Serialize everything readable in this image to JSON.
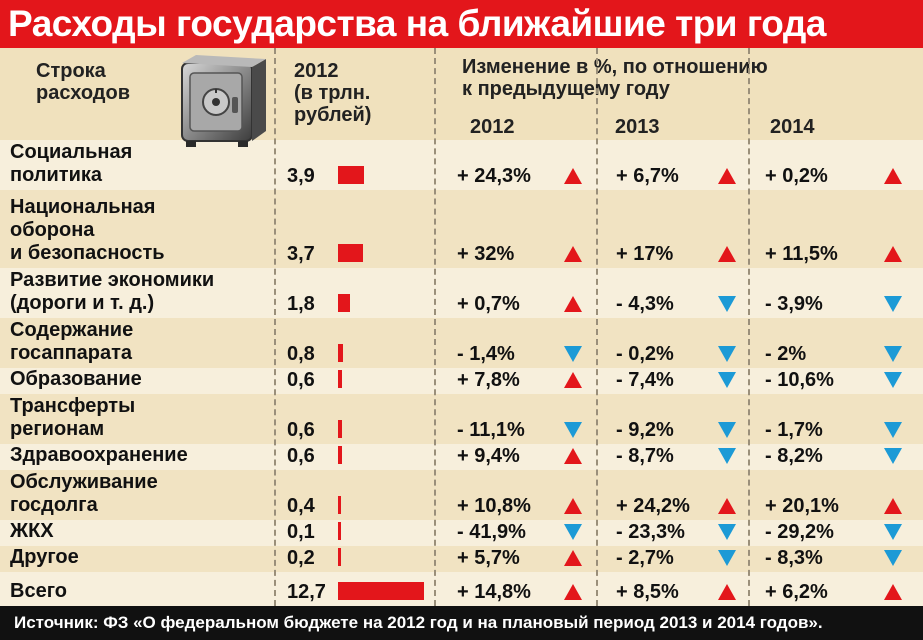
{
  "header": {
    "title": "Расходы государства на ближайшие три года",
    "col_item": "Строка\nрасходов",
    "col_value": "2012\n(в трлн.\nрублей)",
    "col_change": "Изменение в %, по отношению\nк предыдущему году",
    "years": [
      "2012",
      "2013",
      "2014"
    ]
  },
  "source": "Источник: ФЗ «О федеральном бюджете на 2012 год и на плановый период 2013 и 2014 годов».",
  "colors": {
    "accent": "#e3161b",
    "increase": "#e3161b",
    "decrease": "#1c9ad6",
    "title_bg": "#e3161b",
    "source_bg": "#111111"
  },
  "icons": {
    "safe": "safe-icon",
    "up": "triangle-up-icon",
    "down": "triangle-down-icon"
  },
  "chart_data": {
    "type": "table",
    "title": "Расходы государства на ближайшие три года",
    "categories": [
      "Социальная политика",
      "Национальная оборона и безопасность",
      "Развитие экономики (дороги и т. д.)",
      "Содержание госаппарата",
      "Образование",
      "Трансферты регионам",
      "Здравоохранение",
      "Обслуживание госдолга",
      "ЖКХ",
      "Другое",
      "Всего"
    ],
    "rows": [
      {
        "label": "Социальная\nполитика",
        "value": "3,9",
        "amount": 3.9,
        "changes": [
          "+ 24,3%",
          "+ 6,7%",
          "+ 0,2%"
        ],
        "dirs": [
          "up",
          "up",
          "up"
        ]
      },
      {
        "label": "Национальная\nоборона\nи безопасность",
        "value": "3,7",
        "amount": 3.7,
        "changes": [
          "+ 32%",
          "+ 17%",
          "+ 11,5%"
        ],
        "dirs": [
          "up",
          "up",
          "up"
        ]
      },
      {
        "label": "Развитие экономики\n(дороги и т. д.)",
        "value": "1,8",
        "amount": 1.8,
        "changes": [
          "+ 0,7%",
          "- 4,3%",
          "- 3,9%"
        ],
        "dirs": [
          "up",
          "down",
          "down"
        ]
      },
      {
        "label": "Содержание\nгосаппарата",
        "value": "0,8",
        "amount": 0.8,
        "changes": [
          "- 1,4%",
          "- 0,2%",
          "- 2%"
        ],
        "dirs": [
          "down",
          "down",
          "down"
        ]
      },
      {
        "label": "Образование",
        "value": "0,6",
        "amount": 0.6,
        "changes": [
          "+ 7,8%",
          "- 7,4%",
          "- 10,6%"
        ],
        "dirs": [
          "up",
          "down",
          "down"
        ]
      },
      {
        "label": "Трансферты\nрегионам",
        "value": "0,6",
        "amount": 0.6,
        "changes": [
          "- 11,1%",
          "- 9,2%",
          "- 1,7%"
        ],
        "dirs": [
          "down",
          "down",
          "down"
        ]
      },
      {
        "label": "Здравоохранение",
        "value": "0,6",
        "amount": 0.6,
        "changes": [
          "+ 9,4%",
          "- 8,7%",
          "- 8,2%"
        ],
        "dirs": [
          "up",
          "down",
          "down"
        ]
      },
      {
        "label": "Обслуживание\nгосдолга",
        "value": "0,4",
        "amount": 0.4,
        "changes": [
          "+ 10,8%",
          "+ 24,2%",
          "+ 20,1%"
        ],
        "dirs": [
          "up",
          "up",
          "up"
        ]
      },
      {
        "label": "ЖКХ",
        "value": "0,1",
        "amount": 0.1,
        "changes": [
          "- 41,9%",
          "- 23,3%",
          "- 29,2%"
        ],
        "dirs": [
          "down",
          "down",
          "down"
        ]
      },
      {
        "label": "Другое",
        "value": "0,2",
        "amount": 0.2,
        "changes": [
          "+ 5,7%",
          "- 2,7%",
          "- 8,3%"
        ],
        "dirs": [
          "up",
          "down",
          "down"
        ]
      },
      {
        "label": "Всего",
        "value": "12,7",
        "amount": 12.7,
        "changes": [
          "+ 14,8%",
          "+ 8,5%",
          "+ 6,2%"
        ],
        "dirs": [
          "up",
          "up",
          "up"
        ]
      }
    ]
  }
}
